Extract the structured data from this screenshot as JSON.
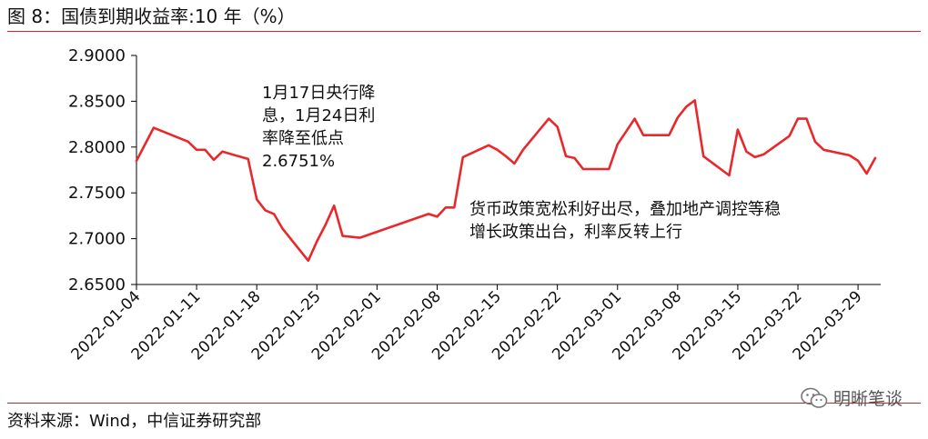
{
  "header": {
    "title": "图 8：国债到期收益率:10 年（%）"
  },
  "footer": {
    "source": "资料来源：Wind，中信证券研究部",
    "watermark": "明晰笔谈",
    "watermark_icon": "wechat-icon"
  },
  "colors": {
    "line": "#e8282b",
    "rule": "#c0282d"
  },
  "chart_data": {
    "type": "line",
    "title": "国债到期收益率:10 年（%）",
    "xlabel": "",
    "ylabel": "",
    "ylim": [
      2.65,
      2.9
    ],
    "yticks": [
      "2.6500",
      "2.7000",
      "2.7500",
      "2.8000",
      "2.8500",
      "2.9000"
    ],
    "xticks": [
      "2022-01-04",
      "2022-01-11",
      "2022-01-18",
      "2022-01-25",
      "2022-02-01",
      "2022-02-08",
      "2022-02-15",
      "2022-02-22",
      "2022-03-01",
      "2022-03-08",
      "2022-03-15",
      "2022-03-22",
      "2022-03-29"
    ],
    "grid": false,
    "legend": "none",
    "x": [
      "2022-01-04",
      "2022-01-06",
      "2022-01-10",
      "2022-01-11",
      "2022-01-12",
      "2022-01-13",
      "2022-01-14",
      "2022-01-17",
      "2022-01-18",
      "2022-01-19",
      "2022-01-20",
      "2022-01-21",
      "2022-01-24",
      "2022-01-25",
      "2022-01-26",
      "2022-01-27",
      "2022-01-28",
      "2022-01-29",
      "2022-01-30",
      "2022-02-07",
      "2022-02-08",
      "2022-02-09",
      "2022-02-10",
      "2022-02-11",
      "2022-02-14",
      "2022-02-15",
      "2022-02-16",
      "2022-02-17",
      "2022-02-18",
      "2022-02-21",
      "2022-02-22",
      "2022-02-23",
      "2022-02-24",
      "2022-02-25",
      "2022-02-28",
      "2022-03-01",
      "2022-03-02",
      "2022-03-03",
      "2022-03-04",
      "2022-03-07",
      "2022-03-08",
      "2022-03-09",
      "2022-03-10",
      "2022-03-11",
      "2022-03-14",
      "2022-03-15",
      "2022-03-16",
      "2022-03-17",
      "2022-03-18",
      "2022-03-21",
      "2022-03-22",
      "2022-03-23",
      "2022-03-24",
      "2022-03-25",
      "2022-03-28",
      "2022-03-29",
      "2022-03-30",
      "2022-03-31"
    ],
    "y": [
      2.785,
      2.821,
      2.806,
      2.797,
      2.797,
      2.786,
      2.795,
      2.787,
      2.743,
      2.731,
      2.727,
      2.711,
      2.676,
      2.697,
      2.715,
      2.736,
      2.703,
      2.702,
      2.701,
      2.727,
      2.724,
      2.734,
      2.734,
      2.789,
      2.802,
      2.797,
      2.79,
      2.782,
      2.797,
      2.831,
      2.822,
      2.79,
      2.788,
      2.776,
      2.776,
      2.803,
      2.817,
      2.831,
      2.813,
      2.813,
      2.832,
      2.844,
      2.851,
      2.79,
      2.769,
      2.819,
      2.795,
      2.789,
      2.792,
      2.812,
      2.831,
      2.831,
      2.806,
      2.797,
      2.791,
      2.785,
      2.771,
      2.788
    ],
    "annotations": [
      {
        "lines": [
          "1月17日央行降",
          "息，1月24日利",
          "率降至低点",
          "2.6751%"
        ]
      },
      {
        "lines": [
          "货币政策宽松利好出尽，叠加地产调控等稳",
          "增长政策出台，利率反转上行"
        ]
      }
    ]
  }
}
